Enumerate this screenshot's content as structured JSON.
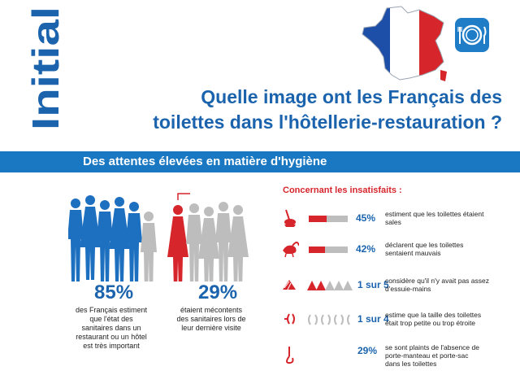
{
  "brand": {
    "name": "Initial"
  },
  "colors": {
    "brand_blue": "#1b64ad",
    "banner_blue": "#1a78c2",
    "accent_red": "#d6252b",
    "neutral_grey": "#bdbdbd",
    "flag_white": "#ffffff"
  },
  "header": {
    "title_line1": "Quelle image ont les Français des",
    "title_line2": "toilettes dans l'hôtellerie-restauration ?",
    "map_icon": "france-flag-map",
    "restaurant_icon": "plate-fork-knife-icon"
  },
  "banner": {
    "text": "Des attentes élevées en matière d'hygiène"
  },
  "stats": [
    {
      "value": "85%",
      "caption": [
        "des Français estiment",
        "que l'état des",
        "sanitaires dans un",
        "restaurant ou un hôtel",
        "est très important"
      ]
    },
    {
      "value": "29%",
      "caption": [
        "étaient mécontents",
        "des sanitaires lors de",
        "leur dernière visite"
      ]
    }
  ],
  "insatisfaits": {
    "title": "Concernant les insatisfaits :",
    "rows": [
      {
        "icon": "toilet-brush-icon",
        "value": "45%",
        "fraction": 0.45,
        "desc": [
          "estiment que les toilettes étaient",
          "sales"
        ]
      },
      {
        "icon": "skunk-icon",
        "value": "42%",
        "fraction": 0.42,
        "desc": [
          "déclarent que les toilettes",
          "sentaient mauvais"
        ]
      },
      {
        "icon": "paper-towel-icon",
        "value": "1 sur 5",
        "fraction": 0.2,
        "desc": [
          "considère qu'il n'y avait pas assez",
          "d'essuie-mains"
        ]
      },
      {
        "icon": "narrow-space-icon",
        "value": "1 sur 4",
        "fraction": 0.25,
        "desc": [
          "estime que la taille des toilettes",
          "était trop petite ou trop étroite"
        ]
      },
      {
        "icon": "coat-hook-icon",
        "value": "29%",
        "fraction": 0.29,
        "desc": [
          "se sont plaints de l'absence de",
          "porte-manteau et porte-sac",
          "dans les toilettes"
        ]
      }
    ]
  }
}
